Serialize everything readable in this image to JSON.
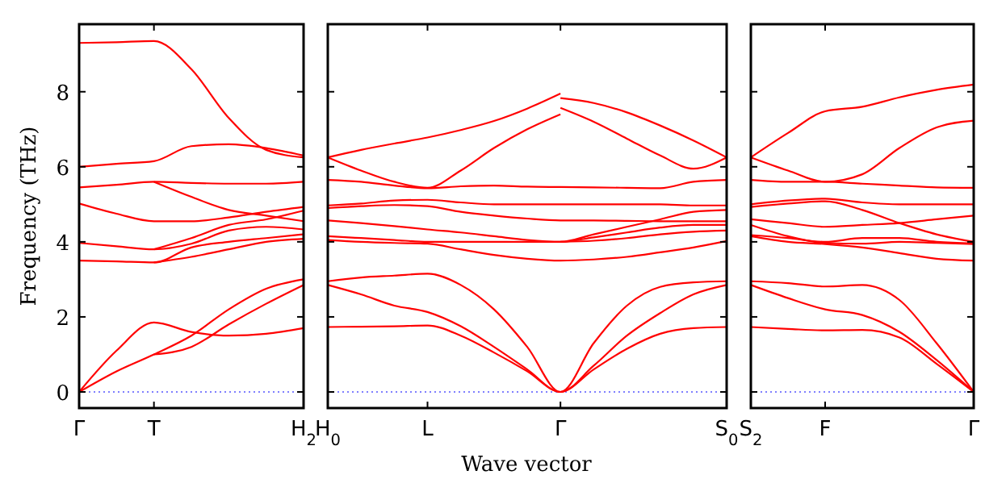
{
  "chart_data": [
    {
      "type": "line",
      "ylabel": "Frequency (THz)",
      "ylim": [
        -0.43,
        9.8
      ],
      "yticks": [
        0,
        2,
        4,
        6,
        8
      ],
      "categories": [
        "Γ",
        null,
        "T",
        null,
        null,
        null,
        "H$_{2}$"
      ],
      "ref_lines": [
        {
          "axis": "y",
          "value": 0,
          "color": "#0000ff",
          "line_style": "dotted"
        }
      ],
      "series": [
        {
          "color": "#ff0000",
          "values": [
            9.3,
            9.32,
            9.35,
            8.6,
            7.3,
            6.45,
            6.25
          ]
        },
        {
          "color": "#ff0000",
          "values": [
            6.0,
            6.08,
            6.15,
            6.55,
            6.6,
            6.5,
            6.3
          ]
        },
        {
          "color": "#ff0000",
          "values": [
            5.45,
            5.52,
            5.6,
            5.57,
            5.55,
            5.55,
            5.6
          ]
        },
        {
          "color": "#ff0000",
          "values": [
            null,
            null,
            5.6,
            5.2,
            4.85,
            4.7,
            4.55
          ]
        },
        {
          "color": "#ff0000",
          "values": [
            5.02,
            4.75,
            4.55,
            4.55,
            4.65,
            4.8,
            4.93
          ]
        },
        {
          "color": "#ff0000",
          "values": [
            null,
            null,
            3.8,
            4.1,
            4.45,
            4.6,
            4.83
          ]
        },
        {
          "color": "#ff0000",
          "values": [
            3.97,
            3.88,
            3.8,
            3.95,
            4.3,
            4.4,
            4.33
          ]
        },
        {
          "color": "#ff0000",
          "values": [
            3.5,
            3.48,
            3.45,
            3.85,
            4.0,
            4.1,
            4.2
          ]
        },
        {
          "color": "#ff0000",
          "values": [
            null,
            null,
            3.45,
            3.6,
            3.8,
            4.0,
            4.08
          ]
        },
        {
          "color": "#ff0000",
          "values": [
            0,
            1.1,
            1.85,
            1.6,
            1.5,
            1.55,
            1.7
          ]
        },
        {
          "color": "#ff0000",
          "values": [
            0,
            0.55,
            1.0,
            1.5,
            2.2,
            2.75,
            3.0
          ]
        },
        {
          "color": "#ff0000",
          "values": [
            null,
            null,
            1.0,
            1.2,
            1.8,
            2.35,
            2.85
          ]
        }
      ]
    },
    {
      "type": "line",
      "xlabel": "Wave vector",
      "ylim": [
        -0.43,
        9.8
      ],
      "yticks": [
        0,
        2,
        4,
        6,
        8
      ],
      "tick_labels": "x",
      "categories": [
        "H$_{0}$",
        null,
        null,
        "L",
        null,
        null,
        null,
        "Γ",
        null,
        null,
        null,
        null,
        "S$_{0}$"
      ],
      "ref_lines": [
        {
          "axis": "y",
          "value": 0,
          "color": "#0000ff",
          "line_style": "dotted"
        }
      ],
      "series": [
        {
          "color": "#ff0000",
          "values": [
            6.25,
            6.45,
            6.62,
            6.78,
            6.98,
            7.22,
            7.55,
            7.95,
            null,
            null,
            null,
            null,
            null
          ]
        },
        {
          "color": "#ff0000",
          "values": [
            null,
            null,
            null,
            null,
            null,
            null,
            null,
            7.83,
            7.7,
            7.45,
            7.1,
            6.7,
            6.25
          ]
        },
        {
          "color": "#ff0000",
          "values": [
            6.25,
            5.9,
            5.6,
            5.44,
            5.9,
            6.5,
            7.0,
            7.4,
            null,
            null,
            null,
            null,
            null
          ]
        },
        {
          "color": "#ff0000",
          "values": [
            null,
            null,
            null,
            null,
            null,
            null,
            null,
            7.57,
            7.2,
            6.75,
            6.3,
            5.95,
            6.25
          ]
        },
        {
          "color": "#ff0000",
          "values": [
            5.65,
            5.6,
            5.5,
            5.43,
            5.48,
            5.5,
            5.47,
            5.46,
            5.45,
            5.44,
            5.43,
            5.6,
            5.65
          ]
        },
        {
          "color": "#ff0000",
          "values": [
            4.97,
            5.02,
            5.1,
            5.12,
            5.05,
            5.0,
            5.0,
            5.0,
            5.0,
            5.0,
            5.0,
            4.97,
            4.97
          ]
        },
        {
          "color": "#ff0000",
          "values": [
            4.9,
            4.95,
            4.98,
            4.95,
            4.8,
            4.7,
            4.62,
            4.57,
            4.57,
            4.56,
            4.55,
            4.55,
            4.55
          ]
        },
        {
          "color": "#ff0000",
          "values": [
            4.57,
            4.5,
            4.42,
            4.33,
            4.25,
            4.15,
            4.05,
            4.0,
            4.2,
            4.4,
            4.6,
            4.8,
            4.85
          ]
        },
        {
          "color": "#ff0000",
          "values": [
            4.15,
            4.1,
            4.05,
            4.0,
            4.0,
            4.0,
            4.0,
            4.0,
            4.12,
            4.25,
            4.38,
            4.45,
            4.45
          ]
        },
        {
          "color": "#ff0000",
          "values": [
            null,
            null,
            null,
            null,
            null,
            null,
            null,
            4.0,
            4.03,
            4.1,
            4.2,
            4.27,
            4.3
          ]
        },
        {
          "color": "#ff0000",
          "values": [
            4.05,
            4.0,
            3.97,
            3.95,
            3.8,
            3.65,
            3.55,
            3.5,
            3.53,
            3.6,
            3.72,
            3.85,
            4.02
          ]
        },
        {
          "color": "#ff0000",
          "values": [
            2.95,
            3.05,
            3.1,
            3.15,
            2.85,
            2.2,
            1.2,
            0,
            1.3,
            2.3,
            2.8,
            2.92,
            2.95
          ]
        },
        {
          "color": "#ff0000",
          "values": [
            2.85,
            2.6,
            2.3,
            2.13,
            1.75,
            1.2,
            0.6,
            0,
            0.7,
            1.5,
            2.1,
            2.6,
            2.85
          ]
        },
        {
          "color": "#ff0000",
          "values": [
            1.73,
            1.74,
            1.75,
            1.77,
            1.5,
            1.05,
            0.55,
            0,
            0.6,
            1.15,
            1.55,
            1.7,
            1.73
          ]
        }
      ]
    },
    {
      "type": "line",
      "ylim": [
        -0.43,
        9.8
      ],
      "yticks": [
        0,
        2,
        4,
        6,
        8
      ],
      "tick_labels": "x",
      "categories": [
        "S$_{2}$",
        null,
        "F",
        null,
        null,
        null,
        "Γ"
      ],
      "ref_lines": [
        {
          "axis": "y",
          "value": 0,
          "color": "#0000ff",
          "line_style": "dotted"
        }
      ],
      "series": [
        {
          "color": "#ff0000",
          "values": [
            6.25,
            6.9,
            7.48,
            7.6,
            7.85,
            8.05,
            8.19
          ]
        },
        {
          "color": "#ff0000",
          "values": [
            6.25,
            5.9,
            5.6,
            5.8,
            6.5,
            7.05,
            7.23
          ]
        },
        {
          "color": "#ff0000",
          "values": [
            5.65,
            5.6,
            5.6,
            5.55,
            5.5,
            5.45,
            5.44
          ]
        },
        {
          "color": "#ff0000",
          "values": [
            5.0,
            5.1,
            5.15,
            5.05,
            5.0,
            5.0,
            5.0
          ]
        },
        {
          "color": "#ff0000",
          "values": [
            4.93,
            5.02,
            5.08,
            4.85,
            4.5,
            4.2,
            4.0
          ]
        },
        {
          "color": "#ff0000",
          "values": [
            4.6,
            4.5,
            4.4,
            4.45,
            4.5,
            4.6,
            4.7
          ]
        },
        {
          "color": "#ff0000",
          "values": [
            4.18,
            4.1,
            4.0,
            4.1,
            4.1,
            4.0,
            3.96
          ]
        },
        {
          "color": "#ff0000",
          "values": [
            4.45,
            4.15,
            3.97,
            3.95,
            4.0,
            3.97,
            3.94
          ]
        },
        {
          "color": "#ff0000",
          "values": [
            4.15,
            4.0,
            3.94,
            3.85,
            3.7,
            3.55,
            3.5
          ]
        },
        {
          "color": "#ff0000",
          "values": [
            2.95,
            2.9,
            2.81,
            2.85,
            2.45,
            1.3,
            0
          ]
        },
        {
          "color": "#ff0000",
          "values": [
            2.85,
            2.5,
            2.2,
            2.05,
            1.6,
            0.85,
            0
          ]
        },
        {
          "color": "#ff0000",
          "values": [
            1.73,
            1.68,
            1.64,
            1.65,
            1.45,
            0.75,
            0
          ]
        }
      ]
    }
  ]
}
